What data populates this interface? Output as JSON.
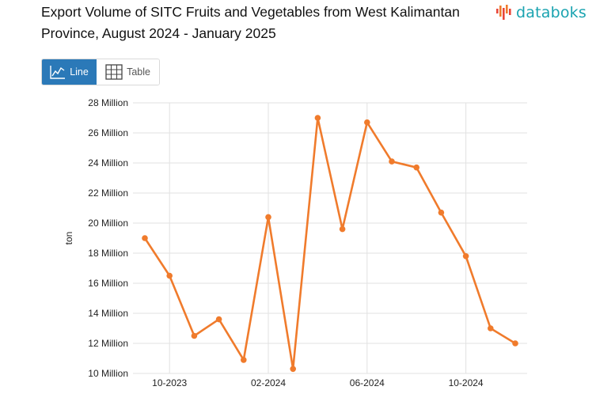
{
  "header": {
    "title": "Export Volume of SITC Fruits and Vegetables from West Kalimantan Province, August 2024 - January 2025"
  },
  "logo": {
    "text": "databoks"
  },
  "toggle": {
    "line_label": "Line",
    "table_label": "Table"
  },
  "colors": {
    "line": "#f07b2c",
    "grid": "#e2e2e2",
    "accent": "#2b79b8",
    "logo": "#1aa3b0"
  },
  "chart_data": {
    "type": "line",
    "title": "Export Volume of SITC Fruits and Vegetables from West Kalimantan Province, August 2024 - January 2025",
    "xlabel": "",
    "ylabel": "ton",
    "ylim": [
      10000000,
      28000000
    ],
    "yticks": [
      10000000,
      12000000,
      14000000,
      16000000,
      18000000,
      20000000,
      22000000,
      24000000,
      26000000,
      28000000
    ],
    "ytick_labels": [
      "10 Million",
      "12 Million",
      "14 Million",
      "16 Million",
      "18 Million",
      "20 Million",
      "22 Million",
      "24 Million",
      "26 Million",
      "28 Million"
    ],
    "x": [
      "2023-09",
      "2023-10",
      "2023-11",
      "2023-12",
      "2024-01",
      "2024-02",
      "2024-03",
      "2024-04",
      "2024-05",
      "2024-06",
      "2024-07",
      "2024-08",
      "2024-09",
      "2024-10",
      "2024-11",
      "2024-12"
    ],
    "xtick_labels": [
      "10-2023",
      "02-2024",
      "06-2024",
      "10-2024"
    ],
    "xtick_positions": [
      1,
      5,
      9,
      13
    ],
    "series": [
      {
        "name": "Export Volume",
        "values": [
          19000000,
          16500000,
          12500000,
          13600000,
          10900000,
          20400000,
          10300000,
          27000000,
          19600000,
          26700000,
          24100000,
          23700000,
          20700000,
          17800000,
          13000000,
          12000000
        ]
      }
    ]
  }
}
